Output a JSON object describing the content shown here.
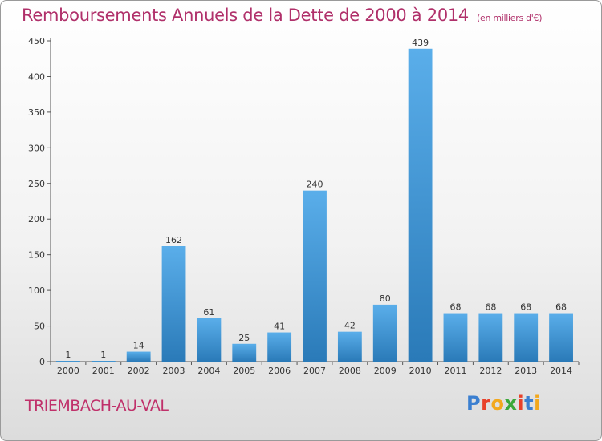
{
  "header": {
    "title": "Remboursements Annuels de la Dette de 2000 à 2014",
    "unit": "(en milliers d'€)"
  },
  "footer": {
    "commune": "TRIEMBACH-AU-VAL",
    "logo": "Proxiti"
  },
  "colors": {
    "title": "#b0306a",
    "bar_light": "#5aaeea",
    "bar_dark": "#2a7ab8"
  },
  "chart_data": {
    "type": "bar",
    "title": "Remboursements Annuels de la Dette de 2000 à 2014",
    "xlabel": "",
    "ylabel": "",
    "ylim": [
      0,
      450
    ],
    "yticks": [
      0,
      50,
      100,
      150,
      200,
      250,
      300,
      350,
      400,
      450
    ],
    "grid": false,
    "categories": [
      "2000",
      "2001",
      "2002",
      "2003",
      "2004",
      "2005",
      "2006",
      "2007",
      "2008",
      "2009",
      "2010",
      "2011",
      "2012",
      "2013",
      "2014"
    ],
    "values": [
      1,
      1,
      14,
      162,
      61,
      25,
      41,
      240,
      42,
      80,
      439,
      68,
      68,
      68,
      68
    ]
  }
}
